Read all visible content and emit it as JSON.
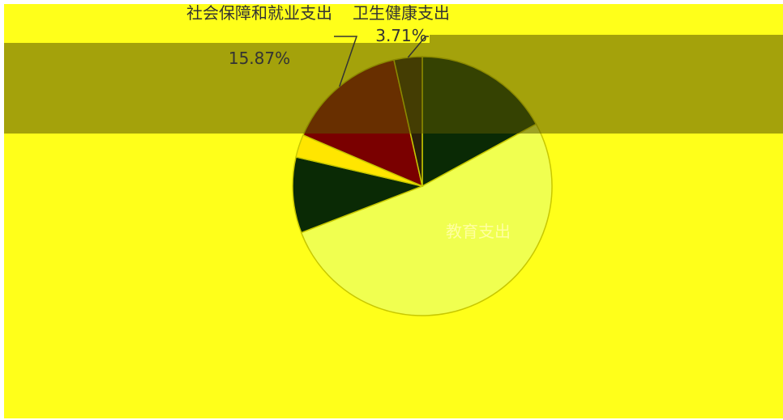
{
  "chart_data": {
    "type": "pie",
    "categories": [
      null,
      "教育支出",
      null,
      null,
      "社会保障和就业支出",
      "卫生健康支出"
    ],
    "values": [
      18,
      55,
      10,
      3,
      15.87,
      3.71
    ],
    "value_labels": [
      null,
      null,
      null,
      null,
      "15.87%",
      "3.71%"
    ],
    "colors": [
      "#0a2a05",
      "#f0ff50",
      "#0a2a05",
      "#ffe600",
      "#7a0000",
      "#2a2008"
    ]
  }
}
